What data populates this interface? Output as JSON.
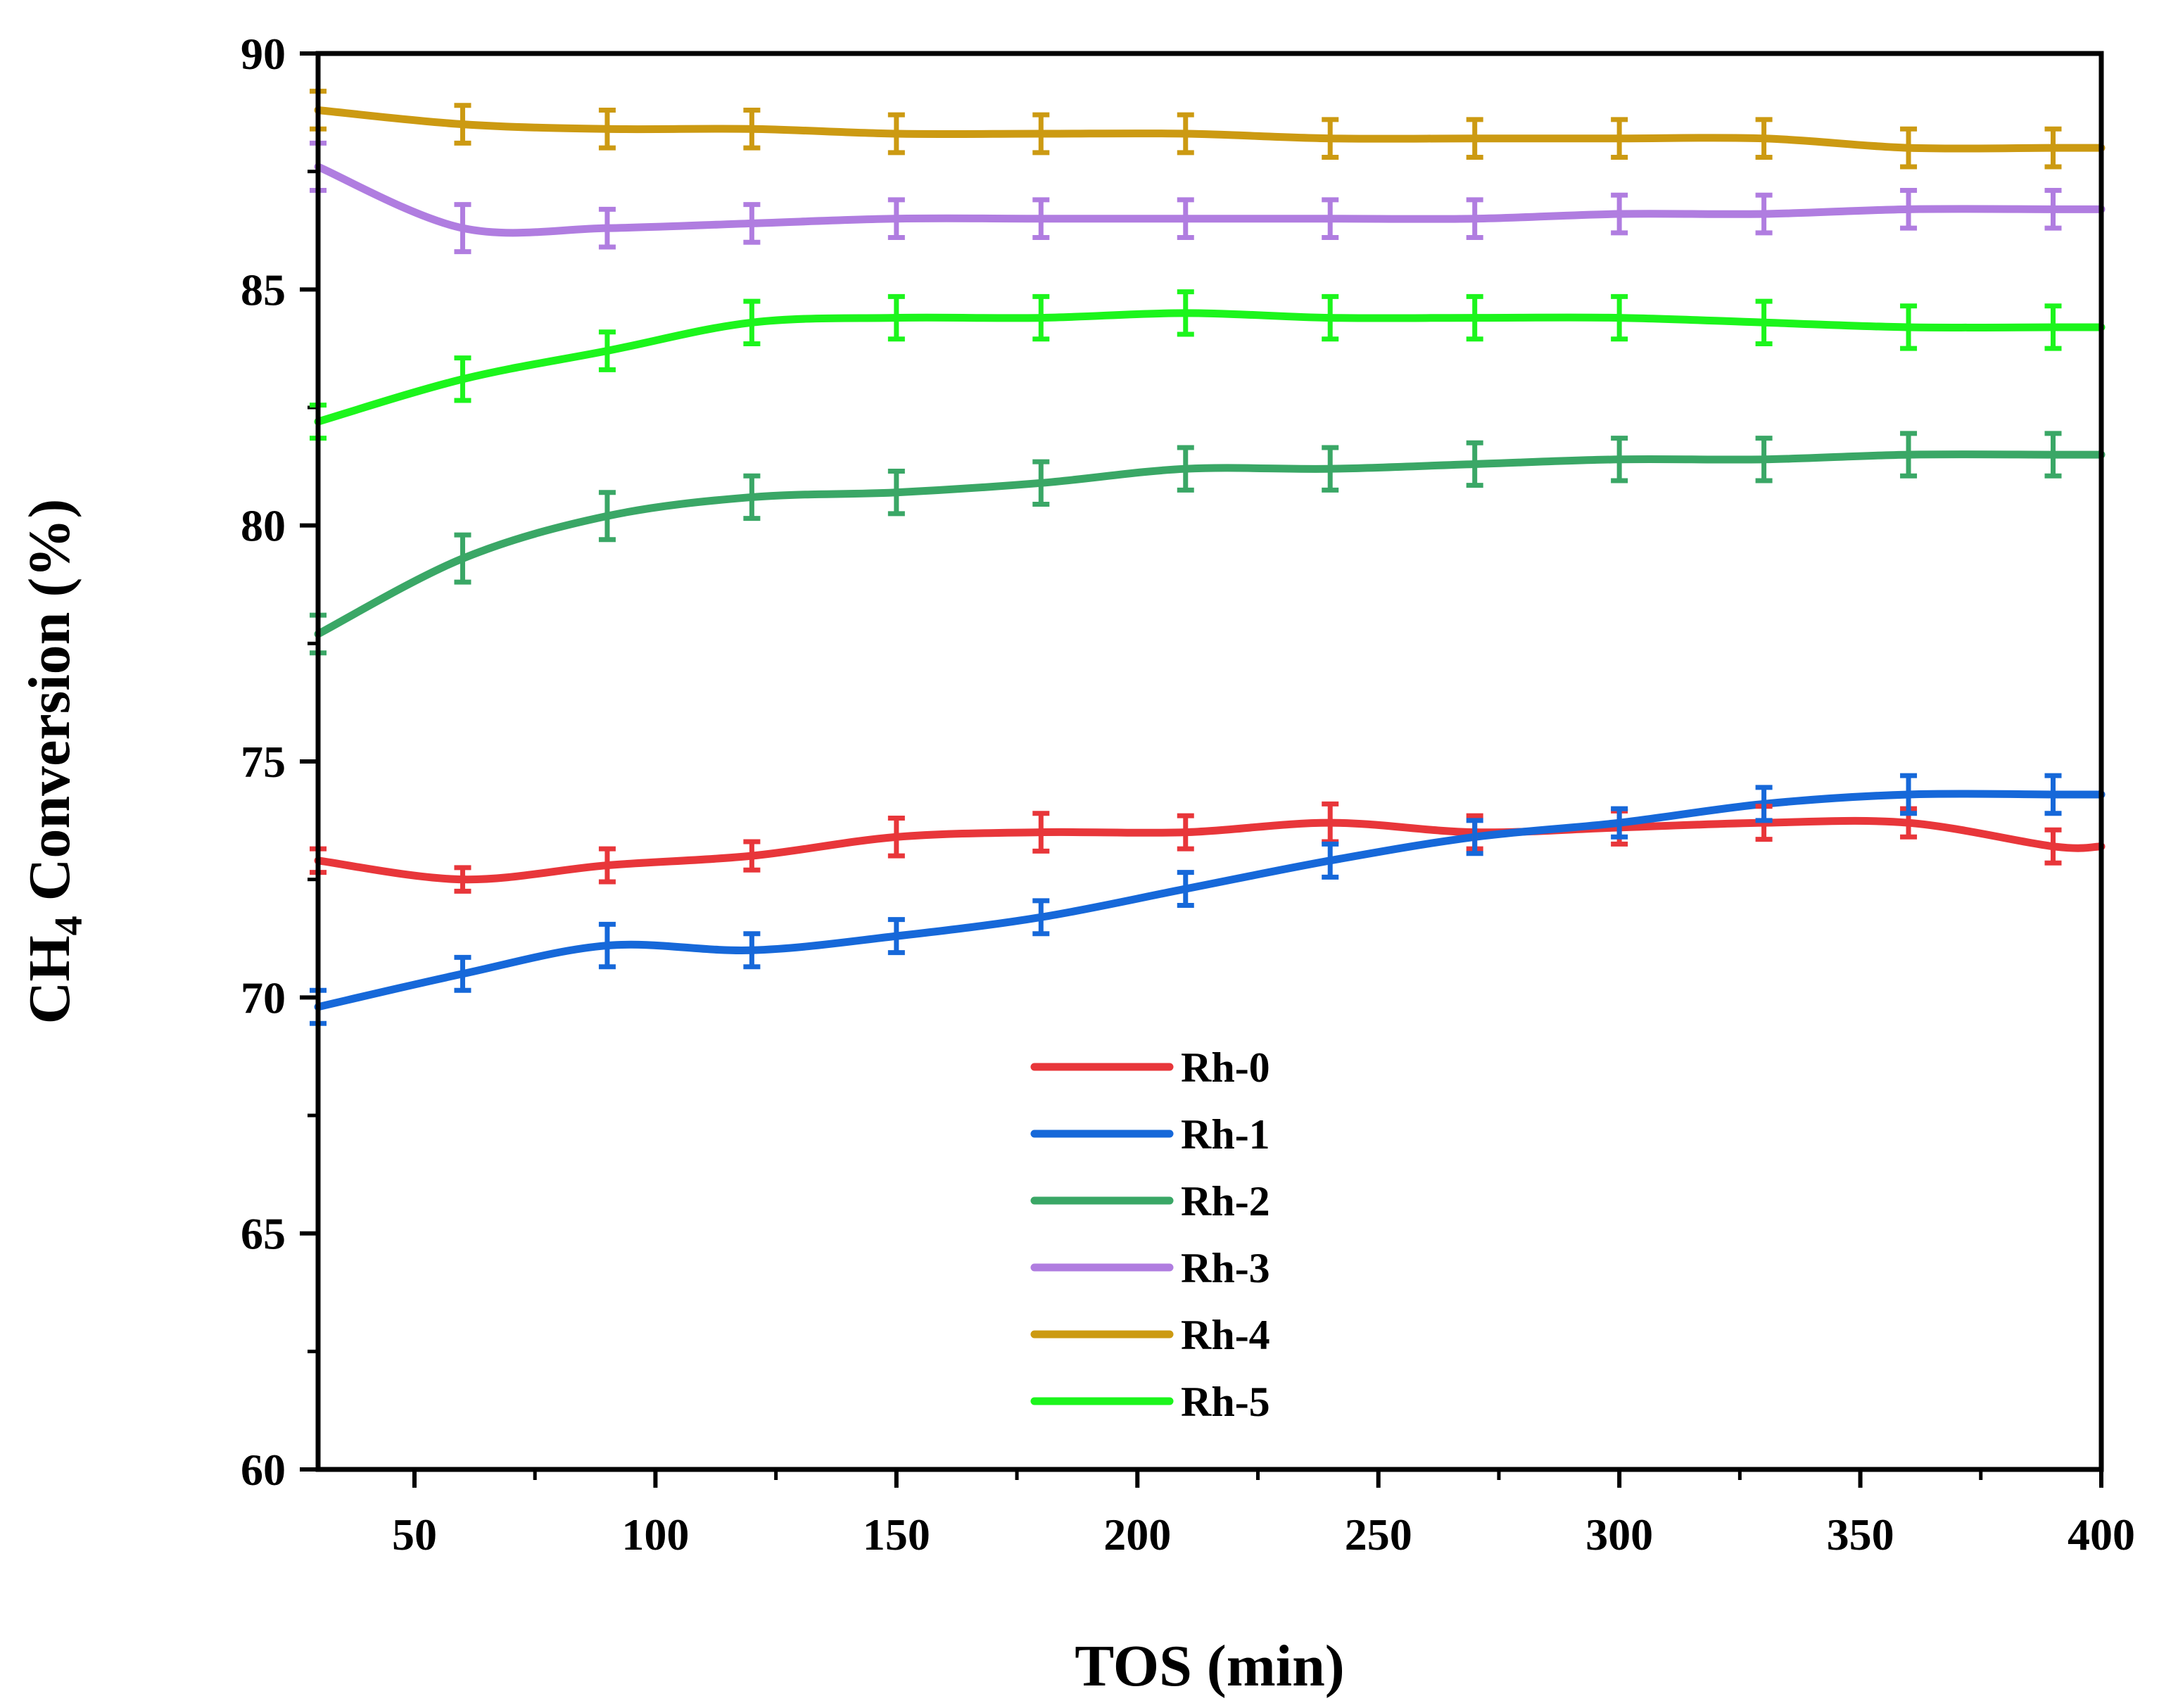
{
  "chart_data": {
    "type": "line",
    "xlabel": "TOS (min)",
    "ylabel": "CH4 Conversion (%)",
    "ylabel_parts": {
      "main": "CH",
      "sub": "4",
      "rest": " Conversion (%)"
    },
    "xlim": [
      30,
      400
    ],
    "ylim": [
      60,
      90
    ],
    "xticks": [
      50,
      100,
      150,
      200,
      250,
      300,
      350,
      400
    ],
    "yticks": [
      60,
      65,
      70,
      75,
      80,
      85,
      90
    ],
    "x": [
      30,
      60,
      90,
      120,
      150,
      180,
      210,
      240,
      270,
      300,
      330,
      360,
      390,
      400
    ],
    "legend_position": "center",
    "series": [
      {
        "name": "Rh-0",
        "color": "#e8363a",
        "values": [
          72.9,
          72.5,
          72.8,
          73.0,
          73.4,
          73.5,
          73.5,
          73.7,
          73.5,
          73.6,
          73.7,
          73.7,
          73.2,
          73.2
        ],
        "errors": [
          0.25,
          0.25,
          0.35,
          0.3,
          0.4,
          0.4,
          0.35,
          0.4,
          0.35,
          0.35,
          0.35,
          0.3,
          0.35,
          null
        ]
      },
      {
        "name": "Rh-1",
        "color": "#1668d9",
        "values": [
          69.8,
          70.5,
          71.1,
          71.0,
          71.3,
          71.7,
          72.3,
          72.9,
          73.4,
          73.7,
          74.1,
          74.3,
          74.3,
          74.3
        ],
        "errors": [
          0.35,
          0.35,
          0.45,
          0.35,
          0.35,
          0.35,
          0.35,
          0.35,
          0.35,
          0.3,
          0.35,
          0.4,
          0.4,
          null
        ]
      },
      {
        "name": "Rh-2",
        "color": "#3aa766",
        "values": [
          77.7,
          79.3,
          80.2,
          80.6,
          80.7,
          80.9,
          81.2,
          81.2,
          81.3,
          81.4,
          81.4,
          81.5,
          81.5,
          81.5
        ],
        "errors": [
          0.4,
          0.5,
          0.5,
          0.45,
          0.45,
          0.45,
          0.45,
          0.45,
          0.45,
          0.45,
          0.45,
          0.45,
          0.45,
          null
        ]
      },
      {
        "name": "Rh-3",
        "color": "#b07de0",
        "values": [
          87.6,
          86.3,
          86.3,
          86.4,
          86.5,
          86.5,
          86.5,
          86.5,
          86.5,
          86.6,
          86.6,
          86.7,
          86.7,
          86.7
        ],
        "errors": [
          0.5,
          0.5,
          0.4,
          0.4,
          0.4,
          0.4,
          0.4,
          0.4,
          0.4,
          0.4,
          0.4,
          0.4,
          0.4,
          null
        ]
      },
      {
        "name": "Rh-4",
        "color": "#cc9a12",
        "values": [
          88.8,
          88.5,
          88.4,
          88.4,
          88.3,
          88.3,
          88.3,
          88.2,
          88.2,
          88.2,
          88.2,
          88.0,
          88.0,
          88.0
        ],
        "errors": [
          0.4,
          0.4,
          0.4,
          0.4,
          0.4,
          0.4,
          0.4,
          0.4,
          0.4,
          0.4,
          0.4,
          0.4,
          0.4,
          null
        ]
      },
      {
        "name": "Rh-5",
        "color": "#1cf51c",
        "values": [
          82.2,
          83.1,
          83.7,
          84.3,
          84.4,
          84.4,
          84.5,
          84.4,
          84.4,
          84.4,
          84.3,
          84.2,
          84.2,
          84.2
        ],
        "errors": [
          0.35,
          0.45,
          0.4,
          0.45,
          0.45,
          0.45,
          0.45,
          0.45,
          0.45,
          0.45,
          0.45,
          0.45,
          0.45,
          null
        ]
      }
    ]
  }
}
